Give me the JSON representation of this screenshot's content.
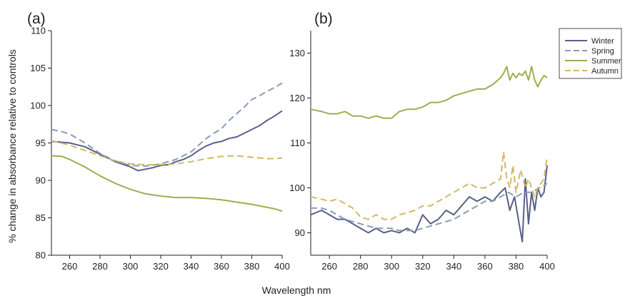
{
  "chart_data": {
    "type": "line",
    "shared": {
      "xlabel": "Wavelength nm",
      "ylabel": "% change in absorbance relative to controls"
    },
    "legend": {
      "placement": "right",
      "entries": [
        {
          "name": "Winter",
          "color": "#5a6088",
          "dash": "solid"
        },
        {
          "name": "Spring",
          "color": "#8b9bb4",
          "dash": "dashed"
        },
        {
          "name": "Summer",
          "color": "#9ab04e",
          "dash": "solid"
        },
        {
          "name": "Autumn",
          "color": "#d4b866",
          "dash": "dashed"
        }
      ]
    },
    "panels": [
      {
        "label": "(a)",
        "xlim": [
          248,
          400
        ],
        "ylim": [
          80,
          110
        ],
        "xticks": [
          260,
          280,
          300,
          320,
          340,
          360,
          380,
          400
        ],
        "yticks": [
          80,
          85,
          90,
          95,
          100,
          105,
          110
        ],
        "grid": false,
        "series": [
          {
            "name": "Winter",
            "x": [
              248,
              260,
              270,
              280,
              290,
              300,
              305,
              310,
              315,
              320,
              325,
              330,
              335,
              340,
              345,
              350,
              355,
              360,
              365,
              370,
              375,
              380,
              385,
              390,
              395,
              400
            ],
            "y": [
              95.2,
              95,
              94.5,
              93.5,
              92.5,
              91.8,
              91.3,
              91.5,
              91.7,
              92,
              92.1,
              92.5,
              92.8,
              93.3,
              94,
              94.6,
              95,
              95.2,
              95.6,
              95.8,
              96.3,
              96.8,
              97.3,
              98,
              98.6,
              99.3
            ]
          },
          {
            "name": "Spring",
            "x": [
              248,
              255,
              260,
              270,
              280,
              290,
              300,
              310,
              320,
              330,
              340,
              345,
              350,
              355,
              360,
              365,
              370,
              375,
              380,
              385,
              390,
              395,
              400
            ],
            "y": [
              96.8,
              96.5,
              96.2,
              95,
              93.6,
              92.6,
              92,
              91.9,
              92.2,
              92.8,
              93.8,
              94.7,
              95.6,
              96.3,
              96.9,
              98,
              98.9,
              99.8,
              100.8,
              101.3,
              101.9,
              102.4,
              103
            ]
          },
          {
            "name": "Summer",
            "x": [
              248,
              255,
              260,
              270,
              280,
              290,
              300,
              310,
              320,
              330,
              340,
              350,
              360,
              370,
              380,
              390,
              395,
              400
            ],
            "y": [
              93.3,
              93.2,
              92.8,
              91.8,
              90.6,
              89.6,
              88.8,
              88.2,
              87.9,
              87.7,
              87.7,
              87.6,
              87.4,
              87.1,
              86.8,
              86.4,
              86.2,
              85.9
            ]
          },
          {
            "name": "Autumn",
            "x": [
              248,
              260,
              270,
              280,
              290,
              300,
              310,
              320,
              330,
              340,
              350,
              360,
              370,
              380,
              390,
              395,
              400
            ],
            "y": [
              95.3,
              94.7,
              94,
              93.3,
              92.6,
              92.2,
              92.1,
              92.1,
              92.2,
              92.5,
              92.9,
              93.2,
              93.3,
              93.1,
              92.9,
              92.9,
              93
            ]
          }
        ]
      },
      {
        "label": "(b)",
        "xlim": [
          248,
          400
        ],
        "ylim": [
          85,
          135
        ],
        "xticks": [
          260,
          280,
          300,
          320,
          340,
          360,
          380,
          400
        ],
        "yticks": [
          90,
          100,
          110,
          120,
          130
        ],
        "grid": false,
        "series": [
          {
            "name": "Winter",
            "x": [
              248,
              255,
              260,
              265,
              270,
              275,
              280,
              285,
              290,
              295,
              300,
              305,
              310,
              315,
              320,
              325,
              330,
              335,
              340,
              345,
              350,
              355,
              360,
              365,
              370,
              373,
              376,
              379,
              382,
              384,
              386,
              388,
              390,
              392,
              394,
              396,
              398,
              400
            ],
            "y": [
              94,
              95,
              94,
              93,
              93,
              92,
              91,
              90,
              91,
              90,
              90.5,
              90,
              91,
              90,
              94,
              92,
              93,
              95,
              94,
              96,
              98,
              97,
              98,
              97,
              99,
              100,
              95,
              98,
              92,
              88,
              102,
              92,
              99,
              95,
              100,
              98,
              99,
              105
            ]
          },
          {
            "name": "Spring",
            "x": [
              248,
              255,
              260,
              265,
              270,
              275,
              280,
              285,
              290,
              295,
              300,
              305,
              310,
              315,
              320,
              325,
              330,
              335,
              340,
              345,
              350,
              355,
              360,
              365,
              370,
              375,
              380,
              385,
              390,
              395,
              400
            ],
            "y": [
              95.5,
              95.5,
              95,
              94,
              93,
              92.5,
              92,
              91.5,
              91,
              91,
              91,
              90.5,
              90.5,
              90.5,
              91,
              91.5,
              92,
              92.5,
              93,
              94,
              95,
              96,
              97,
              97,
              98,
              99,
              98,
              99,
              99,
              100,
              101
            ]
          },
          {
            "name": "Summer",
            "x": [
              248,
              255,
              260,
              265,
              270,
              275,
              280,
              285,
              290,
              295,
              300,
              305,
              310,
              315,
              320,
              325,
              330,
              335,
              340,
              345,
              350,
              355,
              360,
              365,
              370,
              372,
              374,
              376,
              378,
              380,
              382,
              384,
              386,
              388,
              390,
              392,
              394,
              396,
              398,
              400
            ],
            "y": [
              117.5,
              117,
              116.5,
              116.5,
              117,
              116,
              116,
              115.5,
              116,
              115.5,
              115.5,
              117,
              117.5,
              117.5,
              118,
              119,
              119,
              119.5,
              120.5,
              121,
              121.5,
              122,
              122,
              123,
              124.5,
              125.5,
              127,
              124,
              125.5,
              124.5,
              125.5,
              125,
              126,
              124,
              127,
              124,
              122.5,
              124,
              125,
              124.5
            ]
          },
          {
            "name": "Autumn",
            "x": [
              248,
              255,
              260,
              265,
              270,
              275,
              280,
              285,
              290,
              295,
              300,
              305,
              310,
              315,
              320,
              325,
              330,
              335,
              340,
              345,
              350,
              355,
              360,
              365,
              370,
              372,
              374,
              376,
              378,
              380,
              383,
              386,
              388,
              390,
              392,
              394,
              396,
              398,
              400
            ],
            "y": [
              98,
              97.5,
              97,
              97.5,
              96.5,
              95.5,
              93.5,
              93,
              94,
              93,
              93,
              94,
              94.5,
              95,
              96,
              96,
              97,
              98,
              99,
              100,
              101,
              100,
              100,
              101,
              102,
              108,
              102,
              100,
              105,
              99,
              104,
              100,
              102,
              100,
              98,
              100,
              101,
              102,
              107
            ]
          }
        ]
      }
    ]
  }
}
